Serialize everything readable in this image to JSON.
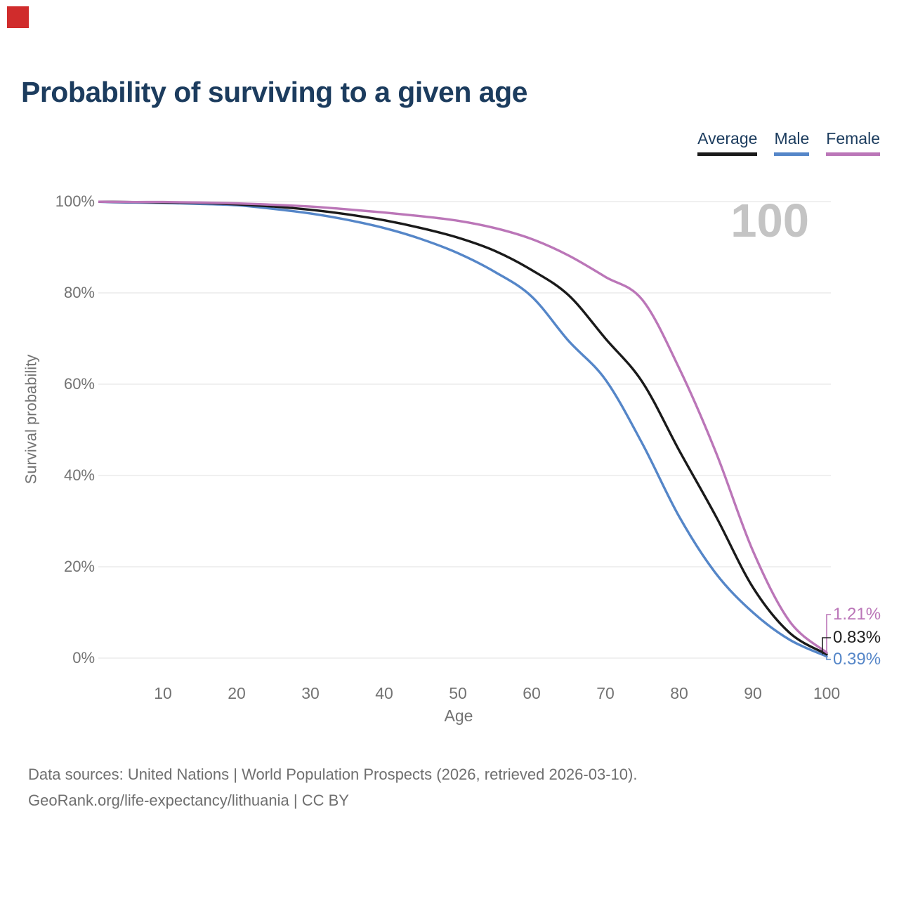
{
  "title": "Probability of surviving to a given age",
  "overlay": {
    "click_marker_color": "#d02c2c"
  },
  "legend": [
    {
      "label": "Average",
      "color": "#1a1a1a"
    },
    {
      "label": "Male",
      "color": "#5586c8"
    },
    {
      "label": "Female",
      "color": "#bb76b8"
    }
  ],
  "watermark": "100",
  "axes": {
    "y_title": "Survival probability",
    "x_title": "Age",
    "y_ticks": [
      {
        "label": "100%",
        "value": 100
      },
      {
        "label": "80%",
        "value": 80
      },
      {
        "label": "60%",
        "value": 60
      },
      {
        "label": "40%",
        "value": 40
      },
      {
        "label": "20%",
        "value": 20
      },
      {
        "label": "0%",
        "value": 0
      }
    ],
    "x_ticks": [
      10,
      20,
      30,
      40,
      50,
      60,
      70,
      80,
      90,
      100
    ]
  },
  "end_labels": [
    {
      "text": "1.21%",
      "series": "Female",
      "color": "#bb76b8"
    },
    {
      "text": "0.83%",
      "series": "Average",
      "color": "#222222"
    },
    {
      "text": "0.39%",
      "series": "Male",
      "color": "#5586c8"
    }
  ],
  "footer": {
    "line1": "Data sources: United Nations | World Population Prospects (2026, retrieved 2026-03-10).",
    "line2": "GeoRank.org/life-expectancy/lithuania | CC BY"
  },
  "chart_data": {
    "type": "line",
    "title": "Probability of surviving to a given age",
    "xlabel": "Age",
    "ylabel": "Survival probability",
    "x": [
      0,
      5,
      10,
      15,
      20,
      25,
      30,
      35,
      40,
      45,
      50,
      55,
      60,
      65,
      70,
      75,
      80,
      85,
      90,
      95,
      100
    ],
    "series": [
      {
        "name": "Male",
        "color": "#5586c8",
        "values": [
          100,
          99.8,
          99.7,
          99.5,
          99.2,
          98.4,
          97.4,
          96.0,
          94.2,
          91.8,
          88.7,
          84.6,
          79.2,
          69.5,
          61.0,
          47.0,
          31.0,
          18.5,
          10.0,
          4.0,
          0.39
        ]
      },
      {
        "name": "Average",
        "color": "#1a1a1a",
        "values": [
          100,
          99.9,
          99.8,
          99.7,
          99.4,
          98.9,
          98.2,
          97.2,
          95.9,
          94.2,
          92.1,
          89.2,
          85.0,
          79.5,
          70.0,
          60.5,
          45.5,
          31.0,
          15.5,
          5.5,
          0.83
        ]
      },
      {
        "name": "Female",
        "color": "#bb76b8",
        "values": [
          100,
          99.9,
          99.9,
          99.8,
          99.6,
          99.3,
          98.9,
          98.3,
          97.6,
          96.8,
          95.8,
          94.2,
          91.8,
          88.2,
          83.5,
          78.5,
          63.5,
          45.0,
          23.5,
          8.0,
          1.21
        ]
      }
    ],
    "end_values": {
      "Female": "1.21%",
      "Average": "0.83%",
      "Male": "0.39%"
    },
    "xlim": [
      0,
      105
    ],
    "ylim": [
      0,
      100
    ],
    "grid": "horizontal",
    "legend_position": "top-right",
    "gridline_color": "#e7e7e7"
  }
}
